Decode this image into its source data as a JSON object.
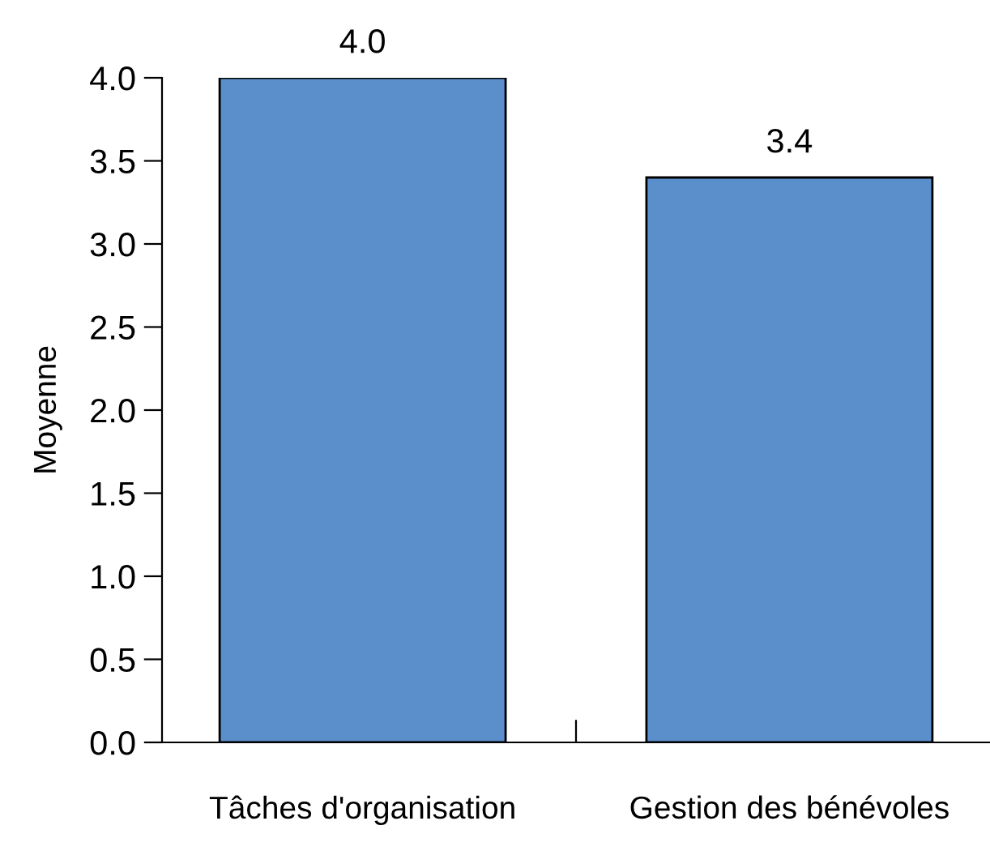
{
  "chart_data": {
    "type": "bar",
    "ylabel": "Moyenne",
    "categories": [
      "Tâches d'organisation",
      "Gestion des bénévoles"
    ],
    "values": [
      4.0,
      3.4
    ],
    "value_labels": [
      "4.0",
      "3.4"
    ],
    "color": "#5b8fcc",
    "ylim": [
      0,
      4
    ],
    "yticks": [
      {
        "value": 0,
        "label": "0.0"
      },
      {
        "value": 0.5,
        "label": "0.5"
      },
      {
        "value": 1,
        "label": "1.0"
      },
      {
        "value": 1.5,
        "label": "1.5"
      },
      {
        "value": 2,
        "label": "2.0"
      },
      {
        "value": 2.5,
        "label": "2.5"
      },
      {
        "value": 3,
        "label": "3.0"
      },
      {
        "value": 3.5,
        "label": "3.5"
      },
      {
        "value": 4,
        "label": "4.0"
      }
    ],
    "grid": false,
    "legend": false
  }
}
